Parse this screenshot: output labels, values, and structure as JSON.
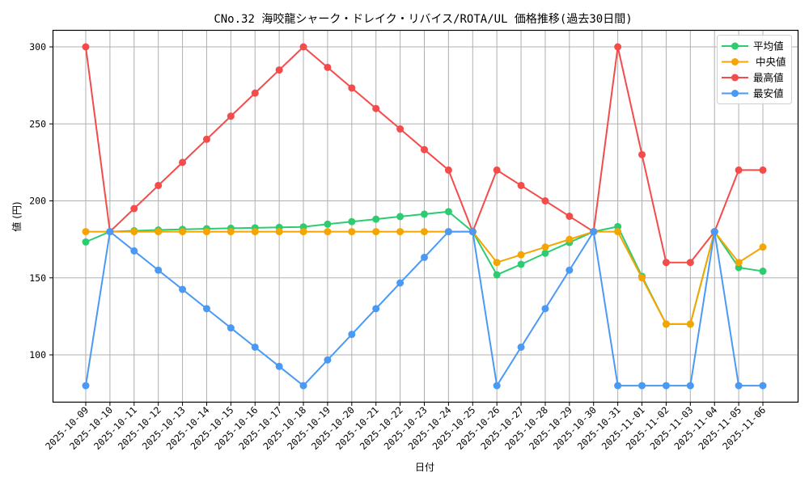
{
  "chart_data": {
    "type": "line",
    "title": "CNo.32 海咬龍シャーク・ドレイク・リバイス/ROTA/UL 価格推移(過去30日間)",
    "xlabel": "日付",
    "ylabel": "値 (円)",
    "ylim": [
      70,
      311
    ],
    "yticks": [
      100,
      150,
      200,
      250,
      300
    ],
    "grid": true,
    "legend_position": "upper right",
    "x": [
      "2025-10-09",
      "2025-10-10",
      "2025-10-11",
      "2025-10-12",
      "2025-10-13",
      "2025-10-14",
      "2025-10-15",
      "2025-10-16",
      "2025-10-17",
      "2025-10-18",
      "2025-10-19",
      "2025-10-20",
      "2025-10-21",
      "2025-10-22",
      "2025-10-23",
      "2025-10-24",
      "2025-10-25",
      "2025-10-26",
      "2025-10-27",
      "2025-10-28",
      "2025-10-29",
      "2025-10-30",
      "2025-10-31",
      "2025-11-01",
      "2025-11-02",
      "2025-11-03",
      "2025-11-04",
      "2025-11-05",
      "2025-11-06"
    ],
    "series": [
      {
        "name": "平均値",
        "color": "#2ecc71",
        "values": [
          173.3,
          180,
          180.6,
          181.1,
          181.5,
          181.9,
          182.2,
          182.5,
          182.8,
          183.1,
          184.9,
          186.5,
          188.1,
          189.8,
          191.4,
          193,
          180,
          152,
          158.8,
          166,
          173,
          180,
          183.3,
          151,
          120,
          120,
          180,
          156.7,
          154.3
        ]
      },
      {
        "name": "中央値",
        "color": "#f5a500",
        "values": [
          180,
          180,
          180,
          180,
          180,
          180,
          180,
          180,
          180,
          180,
          180,
          180,
          180,
          180,
          180,
          180,
          180,
          160,
          165,
          170,
          175,
          180,
          180,
          150,
          120,
          120,
          180,
          160,
          170
        ]
      },
      {
        "name": "最高値",
        "color": "#f44b4b",
        "values": [
          300,
          180,
          195,
          210,
          225,
          240,
          255,
          270,
          285,
          300,
          286.7,
          273.3,
          260,
          246.7,
          233.3,
          220,
          180,
          220,
          210,
          200,
          190,
          180,
          300,
          230,
          160,
          160,
          180,
          220,
          220
        ]
      },
      {
        "name": "最安値",
        "color": "#4a9af5",
        "values": [
          80,
          180,
          167.5,
          155,
          142.5,
          130,
          117.5,
          105,
          92.5,
          80,
          96.7,
          113.3,
          130,
          146.7,
          163.3,
          180,
          180,
          80,
          105,
          130,
          155,
          180,
          80,
          80,
          80,
          80,
          180,
          80,
          80
        ]
      }
    ]
  }
}
